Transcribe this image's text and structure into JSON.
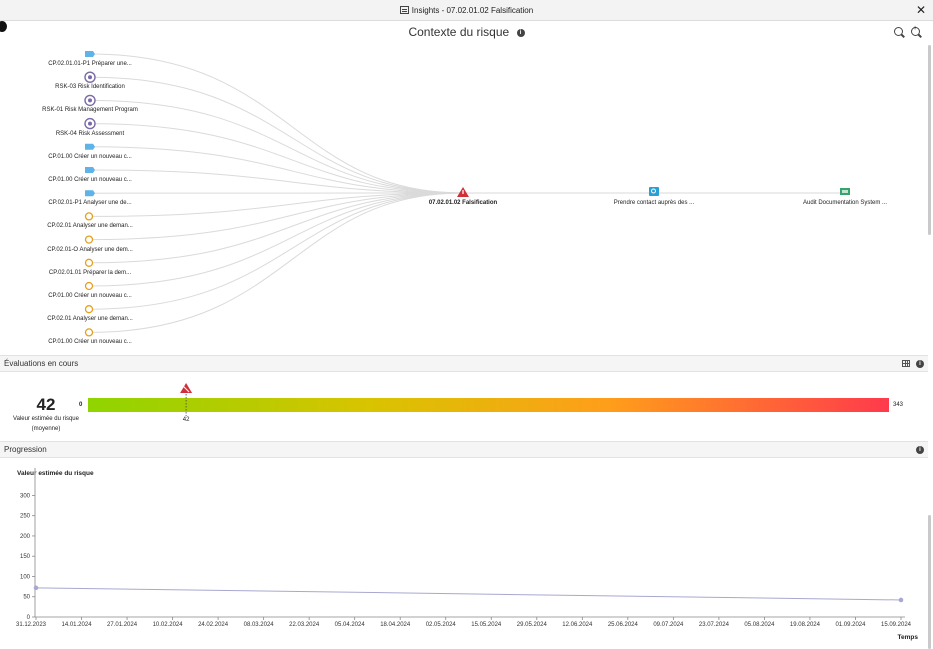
{
  "window": {
    "title": "Insights - 07.02.01.02 Falsification",
    "close": "✕"
  },
  "context": {
    "title": "Contexte du risque",
    "info": "i",
    "center": {
      "label": "07.02.01.02 Falsification"
    },
    "downstream": [
      {
        "label": "Prendre contact auprès des ...",
        "icon": "search-icon",
        "color": "#2a9fd6"
      },
      {
        "label": "Audit Documentation System ...",
        "icon": "document-icon",
        "color": "#3aa36b"
      }
    ],
    "upstream": [
      {
        "label": "CP.02.01.01-P1 Préparer une...",
        "icon": "process-icon"
      },
      {
        "label": "RSK-03 Risk Identification",
        "icon": "eye-icon"
      },
      {
        "label": "RSK-01 Risk Management Program",
        "icon": "eye-icon"
      },
      {
        "label": "RSK-04 Risk Assessment",
        "icon": "eye-icon"
      },
      {
        "label": "CP.01.00 Créer un nouveau c...",
        "icon": "process-icon"
      },
      {
        "label": "CP.01.00 Créer un nouveau c...",
        "icon": "process-icon"
      },
      {
        "label": "CP.02.01-P1 Analyser une de...",
        "icon": "process-icon"
      },
      {
        "label": "CP.02.01 Analyser une deman...",
        "icon": "ring-icon"
      },
      {
        "label": "CP.02.01-O Analyser une dem...",
        "icon": "ring-icon"
      },
      {
        "label": "CP.02.01.01 Préparer la dem...",
        "icon": "ring-icon"
      },
      {
        "label": "CP.01.00 Créer un nouveau c...",
        "icon": "ring-icon"
      },
      {
        "label": "CP.02.01 Analyser une deman...",
        "icon": "ring-icon"
      },
      {
        "label": "CP.01.00 Créer un nouveau c...",
        "icon": "ring-icon"
      }
    ]
  },
  "evaluations": {
    "title": "Évaluations en cours",
    "value": "42",
    "value_label": "Valeur estimée du risque (moyenne)",
    "min": "0",
    "max": "343",
    "marker_value": 42,
    "marker_label": "42"
  },
  "progression": {
    "title": "Progression"
  },
  "chart_data": {
    "type": "line",
    "title": "Valeur estimée du risque",
    "xlabel": "Temps",
    "ylabel": "",
    "ylim": [
      0,
      343
    ],
    "yticks": [
      0,
      50,
      100,
      150,
      200,
      250,
      300
    ],
    "xticks": [
      "31.12.2023",
      "14.01.2024",
      "27.01.2024",
      "10.02.2024",
      "24.02.2024",
      "08.03.2024",
      "22.03.2024",
      "05.04.2024",
      "18.04.2024",
      "02.05.2024",
      "15.05.2024",
      "29.05.2024",
      "12.06.2024",
      "25.06.2024",
      "09.07.2024",
      "23.07.2024",
      "05.08.2024",
      "19.08.2024",
      "01.09.2024",
      "15.09.2024"
    ],
    "series": [
      {
        "x": [
          "31.12.2023",
          "15.09.2024"
        ],
        "values": [
          72,
          42
        ],
        "color": "#a8a8d0"
      }
    ]
  },
  "colors": {
    "process": "#5fb3e6",
    "eye": "#7a6aa8",
    "ring": "#e6a01e",
    "warning": "#d0303a",
    "line": "#a8a8d0"
  }
}
